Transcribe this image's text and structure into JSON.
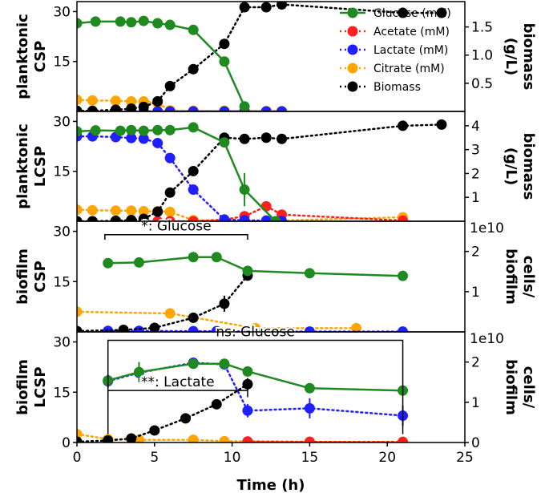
{
  "chart_data": {
    "type": "line",
    "xlabel": "Time (h)",
    "xlim": [
      0,
      25
    ],
    "xticks": [
      0,
      5,
      10,
      15,
      20,
      25
    ],
    "legend": {
      "position": "top-right",
      "entries": [
        {
          "name": "Glucose (mM)",
          "color": "#1f8a1f",
          "style": "solid"
        },
        {
          "name": "Acetate (mM)",
          "color": "#ff1f1f",
          "style": "dotted"
        },
        {
          "name": "Lactate (mM)",
          "color": "#1f1fff",
          "style": "dotted"
        },
        {
          "name": "Citrate (mM)",
          "color": "#ffa500",
          "style": "dotted"
        },
        {
          "name": "Biomass",
          "color": "#000000",
          "style": "dotted"
        }
      ]
    },
    "panels": [
      {
        "id": "p1",
        "left_label": [
          "planktonic",
          "CSP"
        ],
        "right_label": [
          "biomass",
          "(g/L)"
        ],
        "ylim": [
          0,
          33
        ],
        "yticks": [
          15,
          30
        ],
        "y2lim": [
          0,
          1.95
        ],
        "y2ticks": [
          0.5,
          1.0,
          1.5
        ],
        "y2ticklabels": [
          "0.5",
          "1.0",
          "1.5"
        ],
        "series": [
          {
            "name": "Glucose",
            "color": "#1f8a1f",
            "dash": "",
            "axis": "left",
            "x": [
              0,
              1.2,
              2.8,
              3.5,
              4.3,
              5.2,
              6,
              7.5,
              9.5,
              10.8
            ],
            "y": [
              26.5,
              27,
              27,
              26.8,
              27.2,
              26.5,
              26,
              24.5,
              15,
              1.5
            ],
            "err": [
              0,
              0,
              0,
              0,
              0,
              0,
              0,
              0,
              0,
              1
            ]
          },
          {
            "name": "Lactate",
            "color": "#1f1fff",
            "dash": "2,4",
            "axis": "left",
            "x": [
              0,
              1,
              2.5,
              3.5,
              4.3,
              5.2,
              6,
              7.5,
              9.5,
              10.8,
              12.2,
              13.2
            ],
            "y": [
              0,
              0,
              0,
              0,
              0,
              0,
              0,
              0,
              0,
              0,
              0,
              0
            ],
            "err": []
          },
          {
            "name": "Citrate",
            "color": "#ffa500",
            "dash": "2,4",
            "axis": "left",
            "x": [
              0,
              1,
              2.5,
              3.5,
              4.3,
              5.2,
              6,
              7.5,
              9.5,
              10.8,
              12.2,
              13.2
            ],
            "y": [
              3.5,
              3.3,
              3.2,
              3.0,
              3.0,
              2.5,
              0.3,
              0.2,
              0.2,
              0.2,
              0.1,
              0.1
            ],
            "err": []
          },
          {
            "name": "Acetate",
            "color": "#ff1f1f",
            "dash": "2,4",
            "axis": "left",
            "x": [
              0,
              1,
              2.5,
              3.5,
              4.3,
              5.2,
              6,
              7.5,
              9.5,
              10.8,
              12.2,
              13.2
            ],
            "y": [
              0,
              0,
              0,
              0,
              0,
              0,
              0,
              0,
              0,
              0,
              0,
              0
            ],
            "err": []
          },
          {
            "name": "Biomass",
            "color": "#000000",
            "dash": "2,4",
            "axis": "right",
            "x": [
              0,
              1,
              2.5,
              3.5,
              4.3,
              5.2,
              6,
              7.5,
              9.5,
              10.8,
              12.2,
              13.2,
              21,
              23.5
            ],
            "y": [
              0.01,
              0.01,
              0.03,
              0.05,
              0.08,
              0.18,
              0.45,
              0.75,
              1.2,
              1.85,
              1.85,
              1.9,
              1.75,
              1.75
            ],
            "err": [
              0,
              0,
              0,
              0,
              0,
              0,
              0,
              0,
              0,
              0,
              0,
              0,
              0.08,
              0
            ]
          }
        ],
        "annotations": []
      },
      {
        "id": "p2",
        "left_label": [
          "planktonic",
          "LCSP"
        ],
        "right_label": [
          "biomass",
          "(g/L)"
        ],
        "ylim": [
          0,
          33
        ],
        "yticks": [
          15,
          30
        ],
        "y2lim": [
          0,
          4.6
        ],
        "y2ticks": [
          1,
          2,
          3,
          4
        ],
        "y2ticklabels": [
          "1",
          "2",
          "3",
          "4"
        ],
        "series": [
          {
            "name": "Glucose",
            "color": "#1f8a1f",
            "dash": "",
            "axis": "left",
            "x": [
              0,
              1.2,
              2.8,
              3.5,
              4.3,
              5.2,
              6,
              7.5,
              9.5,
              10.8,
              12.8
            ],
            "y": [
              27,
              27.3,
              27.2,
              27.4,
              27.2,
              27.4,
              27.4,
              28.2,
              23.7,
              9.5,
              0
            ],
            "err": [
              0,
              0,
              0,
              0,
              0,
              0,
              0,
              0,
              0,
              5,
              0
            ]
          },
          {
            "name": "Lactate",
            "color": "#1f1fff",
            "dash": "2,4",
            "axis": "left",
            "x": [
              0,
              1,
              2.5,
              3.5,
              4.3,
              5.2,
              6,
              7.5,
              9.5,
              10.8,
              12.2,
              13.2
            ],
            "y": [
              25.5,
              25.5,
              25.3,
              25.0,
              24.8,
              23.5,
              19,
              9.5,
              0.5,
              0.3,
              0.2,
              0.1
            ],
            "err": [
              1,
              1,
              1,
              1,
              1,
              0,
              0,
              0,
              0,
              0,
              0,
              0
            ]
          },
          {
            "name": "Citrate",
            "color": "#ffa500",
            "dash": "2,4",
            "axis": "left",
            "x": [
              0,
              1,
              2.5,
              3.5,
              4.3,
              5.2,
              6,
              7.5,
              9.5,
              10.8,
              12.2,
              21
            ],
            "y": [
              3.5,
              3.3,
              3.2,
              3.2,
              3.0,
              3.0,
              2.8,
              0.3,
              0.2,
              0.1,
              0.1,
              1.2
            ],
            "err": []
          },
          {
            "name": "Acetate",
            "color": "#ff1f1f",
            "dash": "2,4",
            "axis": "left",
            "x": [
              0,
              1,
              2.5,
              3.5,
              4.3,
              5.2,
              6,
              7.5,
              9.5,
              10.8,
              12.2,
              13.2,
              21
            ],
            "y": [
              0,
              0,
              0,
              0,
              0,
              0,
              0,
              0,
              0.5,
              1.5,
              4.5,
              2.0,
              0.2
            ],
            "err": []
          },
          {
            "name": "Biomass",
            "color": "#000000",
            "dash": "2,4",
            "axis": "right",
            "x": [
              0,
              1,
              2.5,
              3.5,
              4.3,
              5.2,
              6,
              7.5,
              9.5,
              10.8,
              12.2,
              13.2,
              21,
              23.5
            ],
            "y": [
              0,
              0,
              0.02,
              0.05,
              0.1,
              0.4,
              1.2,
              2.1,
              3.5,
              3.45,
              3.5,
              3.45,
              4.0,
              4.05
            ],
            "err": []
          }
        ],
        "annotations": []
      },
      {
        "id": "p3",
        "left_label": [
          "biofilm",
          "CSP"
        ],
        "right_label": [
          "cells/",
          "biofilm"
        ],
        "right_exponent": "1e10",
        "ylim": [
          0,
          33
        ],
        "yticks": [
          15,
          30
        ],
        "y2lim": [
          0,
          2.75
        ],
        "y2ticks": [
          1,
          2
        ],
        "y2ticklabels": [
          "1",
          "2"
        ],
        "series": [
          {
            "name": "Glucose",
            "color": "#1f8a1f",
            "dash": "",
            "axis": "left",
            "x": [
              2,
              4,
              7.5,
              9,
              11,
              15,
              21
            ],
            "y": [
              20.5,
              20.7,
              22.3,
              22.3,
              18.2,
              17.5,
              16.7
            ],
            "err": [
              0,
              0,
              0,
              0,
              0,
              0,
              0
            ]
          },
          {
            "name": "Lactate",
            "color": "#1f1fff",
            "dash": "2,4",
            "axis": "left",
            "x": [
              2,
              4,
              7.5,
              9,
              11,
              15,
              21
            ],
            "y": [
              0.3,
              0.3,
              0.2,
              0.2,
              0.1,
              0.1,
              0.1
            ],
            "err": []
          },
          {
            "name": "Citrate",
            "color": "#ffa500",
            "dash": "2,4",
            "axis": "left",
            "x": [
              0,
              6,
              11.5,
              18
            ],
            "y": [
              6.0,
              5.5,
              1.1,
              1.1
            ],
            "err": []
          },
          {
            "name": "Acetate",
            "color": "#ff1f1f",
            "dash": "2,4",
            "axis": "left",
            "x": [
              11
            ],
            "y": [
              0.5
            ],
            "err": []
          },
          {
            "name": "Biomass",
            "color": "#000000",
            "dash": "2,4",
            "axis": "right",
            "x": [
              0,
              3,
              5,
              7.5,
              9.5,
              11
            ],
            "y": [
              0.02,
              0.05,
              0.1,
              0.35,
              0.7,
              1.4
            ],
            "err": [
              0,
              0,
              0,
              0,
              0.2,
              0.1
            ]
          }
        ],
        "annotations": [
          {
            "text": "*: Glucose",
            "x1": 1.8,
            "x2": 11,
            "y": 29,
            "drop": 1.5
          }
        ]
      },
      {
        "id": "p4",
        "left_label": [
          "biofilm",
          "LCSP"
        ],
        "right_label": [
          "cells/",
          "biofilm"
        ],
        "right_exponent": "1e10",
        "ylim": [
          0,
          33
        ],
        "yticks": [
          0,
          15,
          30
        ],
        "y2lim": [
          0,
          2.75
        ],
        "y2ticks": [
          0,
          1,
          2
        ],
        "y2ticklabels": [
          "0",
          "1",
          "2"
        ],
        "series": [
          {
            "name": "Glucose",
            "color": "#1f8a1f",
            "dash": "",
            "axis": "left",
            "x": [
              2,
              4,
              7.5,
              9.5,
              11,
              15,
              21
            ],
            "y": [
              18.5,
              21,
              23.5,
              23.5,
              21.2,
              16.2,
              15.5
            ],
            "err": [
              0,
              3,
              0,
              0,
              0,
              0,
              0
            ]
          },
          {
            "name": "Lactate",
            "color": "#1f1fff",
            "dash": "2,4",
            "axis": "left",
            "x": [
              2,
              4,
              7.5,
              9.5,
              11,
              15,
              21
            ],
            "y": [
              18.3,
              20.8,
              23.8,
              23.3,
              9.5,
              10.2,
              8.0
            ],
            "err": [
              2,
              2,
              0,
              0,
              2,
              3,
              3
            ]
          },
          {
            "name": "Citrate",
            "color": "#ffa500",
            "dash": "2,4",
            "axis": "left",
            "x": [
              0,
              2,
              4,
              7.5,
              9.5,
              11,
              15,
              21
            ],
            "y": [
              2.5,
              1.0,
              0.8,
              0.8,
              0.4,
              0.3,
              0.2,
              0.1
            ],
            "err": []
          },
          {
            "name": "Acetate",
            "color": "#ff1f1f",
            "dash": "2,4",
            "axis": "left",
            "x": [
              11,
              15,
              21
            ],
            "y": [
              0.3,
              0.2,
              0.2
            ],
            "err": []
          },
          {
            "name": "Biomass",
            "color": "#000000",
            "dash": "2,4",
            "axis": "right",
            "x": [
              0,
              2,
              3.5,
              5,
              7,
              9,
              11
            ],
            "y": [
              0.02,
              0.05,
              0.1,
              0.3,
              0.6,
              0.95,
              1.45
            ],
            "err": [
              0,
              0,
              0,
              0,
              0,
              0,
              0.15
            ]
          }
        ],
        "annotations": [
          {
            "text": "ns: Glucose",
            "x1": 2,
            "x2": 21,
            "y": 30.5,
            "drop": 28
          },
          {
            "text": "**: Lactate",
            "x1": 2,
            "x2": 11,
            "y": 15.5,
            "drop": 2
          }
        ]
      }
    ]
  }
}
